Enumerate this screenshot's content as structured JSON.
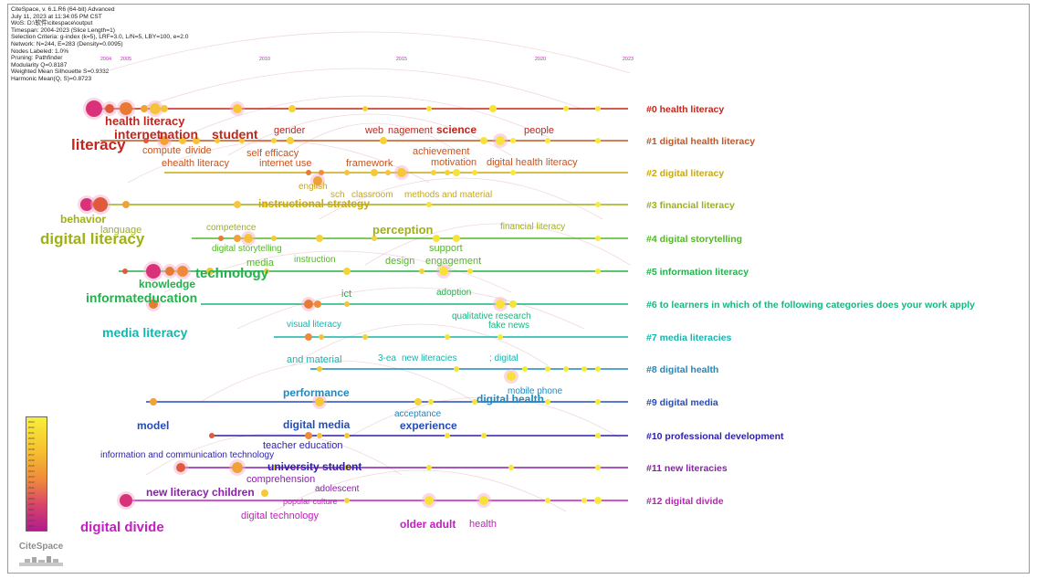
{
  "info_lines": [
    "CiteSpace, v. 6.1.R6 (64-bit) Advanced",
    "July 11, 2023 at 11:34:05 PM CST",
    "WoS: D:\\软件\\citespace\\output",
    "Timespan: 2004-2023 (Slice Length=1)",
    "Selection Criteria: g-index (k=5), LRF=3.0, L/N=5, LBY=100, e=2.0",
    "Network: N=244, E=283 (Density=0.0095)",
    "Nodes Labeled: 1.0%",
    "Pruning: Pathfinder",
    "Modularity Q=0.8187",
    "Weighted Mean Silhouette S=0.9332",
    "Harmonic Mean(Q, S)=0.8723"
  ],
  "years": [
    "2004",
    "2005",
    "2010",
    "2015",
    "2020",
    "2023"
  ],
  "clusters": [
    {
      "id": "#0 health literacy",
      "color": "#c0261c"
    },
    {
      "id": "#1 digital health literacy",
      "color": "#c8541e"
    },
    {
      "id": "#2 digital literacy",
      "color": "#c9a714"
    },
    {
      "id": "#3 financial literacy",
      "color": "#9fb019"
    },
    {
      "id": "#4 digital storytelling",
      "color": "#54b627"
    },
    {
      "id": "#5 information literacy",
      "color": "#22b14a"
    },
    {
      "id": "#6 to learners in which of the following categories does your work apply",
      "color": "#1ab57d"
    },
    {
      "id": "#7 media literacies",
      "color": "#17b4ac"
    },
    {
      "id": "#8 digital health",
      "color": "#2089c0"
    },
    {
      "id": "#9 digital media",
      "color": "#234bbd"
    },
    {
      "id": "#10 professional development",
      "color": "#2c1fa8"
    },
    {
      "id": "#11 new literacies",
      "color": "#8c1fb0"
    },
    {
      "id": "#12 digital divide",
      "color": "#c21ec0"
    }
  ],
  "keywords": [
    {
      "t": "health literacy",
      "c": 0,
      "s": 13
    },
    {
      "t": "internet",
      "c": 0,
      "s": 14
    },
    {
      "t": "nation",
      "c": 0,
      "s": 14
    },
    {
      "t": "literacy",
      "c": 0,
      "s": 17
    },
    {
      "t": "student",
      "c": 0,
      "s": 14
    },
    {
      "t": "gender",
      "c": 0,
      "s": 11
    },
    {
      "t": "web",
      "c": 0,
      "s": 11
    },
    {
      "t": "nagement",
      "c": 0,
      "s": 11
    },
    {
      "t": "science",
      "c": 0,
      "s": 12
    },
    {
      "t": "people",
      "c": 0,
      "s": 11
    },
    {
      "t": "compute",
      "c": 1,
      "s": 11
    },
    {
      "t": "divide",
      "c": 1,
      "s": 11
    },
    {
      "t": "self efficacy",
      "c": 1,
      "s": 11
    },
    {
      "t": "achievement",
      "c": 1,
      "s": 11
    },
    {
      "t": "ehealth literacy",
      "c": 1,
      "s": 11
    },
    {
      "t": "internet use",
      "c": 1,
      "s": 11
    },
    {
      "t": "framework",
      "c": 1,
      "s": 11
    },
    {
      "t": "motivation",
      "c": 1,
      "s": 11
    },
    {
      "t": "digital health literacy",
      "c": 1,
      "s": 11
    },
    {
      "t": "english",
      "c": 2,
      "s": 10
    },
    {
      "t": "sch",
      "c": 2,
      "s": 10
    },
    {
      "t": "classroom",
      "c": 2,
      "s": 10
    },
    {
      "t": "methods and material",
      "c": 2,
      "s": 10
    },
    {
      "t": "instructional strategy",
      "c": 2,
      "s": 12
    },
    {
      "t": "behavior",
      "c": 3,
      "s": 12
    },
    {
      "t": "language",
      "c": 3,
      "s": 11
    },
    {
      "t": "digital literacy",
      "c": 3,
      "s": 17
    },
    {
      "t": "competence",
      "c": 3,
      "s": 10
    },
    {
      "t": "perception",
      "c": 3,
      "s": 13
    },
    {
      "t": "financial literacy",
      "c": 3,
      "s": 10
    },
    {
      "t": "digital storytelling",
      "c": 4,
      "s": 10
    },
    {
      "t": "media",
      "c": 4,
      "s": 11
    },
    {
      "t": "support",
      "c": 4,
      "s": 11
    },
    {
      "t": "instruction",
      "c": 4,
      "s": 10
    },
    {
      "t": "design",
      "c": 4,
      "s": 11
    },
    {
      "t": "engagement",
      "c": 4,
      "s": 11
    },
    {
      "t": "technology",
      "c": 5,
      "s": 15
    },
    {
      "t": "knowledge",
      "c": 5,
      "s": 12
    },
    {
      "t": "informat",
      "c": 5,
      "s": 14
    },
    {
      "t": "education",
      "c": 5,
      "s": 14
    },
    {
      "t": "ict",
      "c": 5,
      "s": 11
    },
    {
      "t": "adoption",
      "c": 5,
      "s": 10
    },
    {
      "t": "media literacy",
      "c": 7,
      "s": 14
    },
    {
      "t": "qualitative research",
      "c": 6,
      "s": 10
    },
    {
      "t": "fake news",
      "c": 6,
      "s": 10
    },
    {
      "t": "visual literacy",
      "c": 7,
      "s": 10
    },
    {
      "t": "and material",
      "c": 7,
      "s": 11
    },
    {
      "t": "3-ea",
      "c": 7,
      "s": 10
    },
    {
      "t": "new literacies",
      "c": 7,
      "s": 10
    },
    {
      "t": "; digital",
      "c": 7,
      "s": 10
    },
    {
      "t": "performance",
      "c": 8,
      "s": 12
    },
    {
      "t": "mobile phone",
      "c": 8,
      "s": 10
    },
    {
      "t": "digital health",
      "c": 8,
      "s": 12
    },
    {
      "t": "acceptance",
      "c": 8,
      "s": 10
    },
    {
      "t": "model",
      "c": 9,
      "s": 12
    },
    {
      "t": "digital media",
      "c": 9,
      "s": 12
    },
    {
      "t": "experience",
      "c": 9,
      "s": 12
    },
    {
      "t": "teacher education",
      "c": 10,
      "s": 11
    },
    {
      "t": "information and communication technology",
      "c": 10,
      "s": 10
    },
    {
      "t": "university student",
      "c": 10,
      "s": 12
    },
    {
      "t": "comprehension",
      "c": 11,
      "s": 11
    },
    {
      "t": "adolescent",
      "c": 11,
      "s": 10
    },
    {
      "t": "new literacy",
      "c": 11,
      "s": 12
    },
    {
      "t": "children",
      "c": 11,
      "s": 12
    },
    {
      "t": "popular culture",
      "c": 12,
      "s": 9
    },
    {
      "t": "digital technology",
      "c": 12,
      "s": 11
    },
    {
      "t": "digital divide",
      "c": 12,
      "s": 15
    },
    {
      "t": "older adult",
      "c": 12,
      "s": 12
    },
    {
      "t": "health",
      "c": 12,
      "s": 11
    }
  ],
  "legend_years": [
    "2023",
    "2022",
    "2021",
    "2020",
    "2019",
    "2018",
    "2017",
    "2016",
    "2015",
    "2014",
    "2013",
    "2012",
    "2011",
    "2010",
    "2009",
    "2008",
    "2007",
    "2006",
    "2005",
    "2004"
  ],
  "logo_text": "CiteSpace"
}
